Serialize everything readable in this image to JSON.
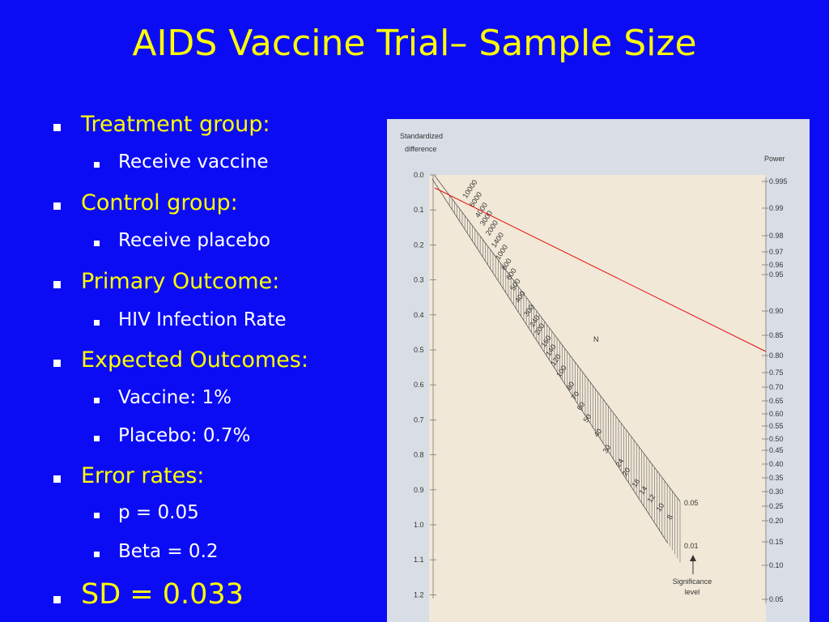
{
  "header": {
    "title": "AIDS Vaccine Trial– Sample Size"
  },
  "bullets": [
    {
      "text": "Treatment group:",
      "items": [
        "Receive vaccine"
      ]
    },
    {
      "text": "Control group:",
      "items": [
        "Receive placebo"
      ]
    },
    {
      "text": "Primary Outcome:",
      "items": [
        "HIV Infection Rate"
      ]
    },
    {
      "text": "Expected Outcomes:",
      "items": [
        "Vaccine: 1%",
        "Placebo: 0.7%"
      ]
    },
    {
      "text": "Error rates:",
      "items": [
        "p = 0.05",
        "Beta = 0.2"
      ]
    },
    {
      "text": "SD = 0.033",
      "items": []
    }
  ],
  "nomogram": {
    "left_title": [
      "Standardized",
      "difference"
    ],
    "left_ticks": [
      "0.0",
      "0.1",
      "0.2",
      "0.3",
      "0.4",
      "0.5",
      "0.6",
      "0.7",
      "0.8",
      "0.9",
      "1.0",
      "1.1",
      "1.2"
    ],
    "right_title": "Power",
    "right_ticks": [
      "0.995",
      "0.99",
      "0.98",
      "0.97",
      "0.96",
      "0.95",
      "0.90",
      "0.85",
      "0.80",
      "0.75",
      "0.70",
      "0.65",
      "0.60",
      "0.55",
      "0.50",
      "0.45",
      "0.40",
      "0.35",
      "0.30",
      "0.25",
      "0.20",
      "0.15",
      "0.10",
      "0.05"
    ],
    "n_label": "N",
    "n_ticks": [
      "10000",
      "6000",
      "4000",
      "3000",
      "2000",
      "1400",
      "1000",
      "800",
      "600",
      "500",
      "400",
      "300",
      "240",
      "200",
      "160",
      "140",
      "120",
      "100",
      "80",
      "70",
      "60",
      "50",
      "40",
      "30",
      "24",
      "20",
      "16",
      "14",
      "12",
      "10",
      "8"
    ],
    "sig_high": "0.05",
    "sig_low": "0.01",
    "sig_title": [
      "Significance",
      "level"
    ]
  }
}
